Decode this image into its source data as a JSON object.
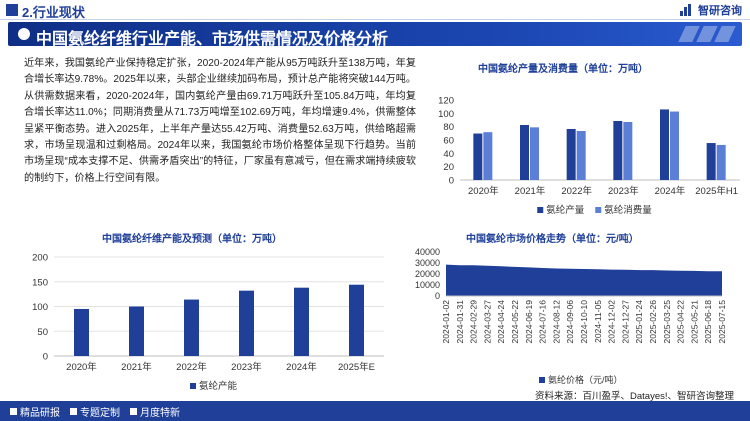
{
  "header": {
    "section_title": "2.行业现状",
    "brand": "智研咨询",
    "banner_title": "中国氨纶纤维行业产能、市场供需情况及价格分析"
  },
  "paragraph": "近年来，我国氨纶产业保持稳定扩张，2020-2024年产能从95万吨跃升至138万吨，年复合增长率达9.78%。2025年以来，头部企业继续加码布局，预计总产能将突破144万吨。从供需数据来看，2020-2024年，国内氨纶产量由69.71万吨跃升至105.84万吨，年均复合增长率达11.0%；同期消费量从71.73万吨增至102.69万吨，年均增速9.4%，供需整体呈紧平衡态势。进入2025年，上半年产量达55.42万吨、消费量52.63万吨，供给略超需求，市场呈现温和过剩格局。2024年以来，我国氨纶市场价格整体呈现下行趋势。当前市场呈现“成本支撑不足、供需矛盾突出”的特征，厂家虽有意减亏，但在需求端持续疲软的制约下，价格上行空间有限。",
  "colors": {
    "navy": "#1f3f99",
    "series_dark": "#1f3f99",
    "series_light": "#5b7fd6"
  },
  "chart_data": [
    {
      "id": "production_consumption",
      "type": "bar",
      "title": "中国氨纶产量及消费量（单位：万吨）",
      "categories": [
        "2020年",
        "2021年",
        "2022年",
        "2023年",
        "2024年",
        "2025年H1"
      ],
      "series": [
        {
          "name": "氨纶产量",
          "values": [
            69.71,
            82.5,
            76.5,
            88.5,
            105.84,
            55.42
          ]
        },
        {
          "name": "氨纶消费量",
          "values": [
            71.73,
            79.0,
            73.5,
            87.0,
            102.69,
            52.63
          ]
        }
      ],
      "ylim": [
        0,
        120
      ],
      "yticks": [
        "0",
        "20",
        "40",
        "60",
        "80",
        "100",
        "120"
      ],
      "legend": "bottom"
    },
    {
      "id": "capacity_forecast",
      "type": "bar",
      "title": "中国氨纶纤维产能及预测（单位：万吨）",
      "categories": [
        "2020年",
        "2021年",
        "2022年",
        "2023年",
        "2024年",
        "2025年E"
      ],
      "series": [
        {
          "name": "氨纶产能",
          "values": [
            95,
            100,
            114,
            132,
            138,
            144
          ]
        }
      ],
      "ylim": [
        0,
        200
      ],
      "yticks": [
        "0",
        "50",
        "100",
        "150",
        "200"
      ],
      "legend": "bottom"
    },
    {
      "id": "price_trend",
      "type": "area",
      "title": "中国氨纶市场价格走势（单位：元/吨）",
      "x": [
        "2024-01-02",
        "2024-01-31",
        "2024-02-29",
        "2024-03-27",
        "2024-04-24",
        "2024-05-22",
        "2024-06-19",
        "2024-07-16",
        "2024-08-12",
        "2024-09-06",
        "2024-10-10",
        "2024-11-05",
        "2024-12-02",
        "2024-12-27",
        "2025-01-24",
        "2025-02-26",
        "2025-03-25",
        "2025-04-22",
        "2025-05-21",
        "2025-06-18",
        "2025-07-15"
      ],
      "series": [
        {
          "name": "氨纶价格（元/吨）",
          "values": [
            28500,
            28000,
            28000,
            27500,
            27000,
            26500,
            26000,
            25500,
            25000,
            24800,
            24500,
            24300,
            24000,
            23800,
            23500,
            23500,
            23200,
            23000,
            22800,
            22500,
            22500
          ]
        }
      ],
      "ylim": [
        0,
        40000
      ],
      "yticks": [
        "0",
        "10000",
        "20000",
        "30000",
        "40000"
      ],
      "legend": "bottom"
    }
  ],
  "footer": {
    "items": [
      "精品研报",
      "专题定制",
      "月度特新"
    ],
    "source": "资料来源：百川盈孚、Datayes!、智研咨询整理"
  }
}
